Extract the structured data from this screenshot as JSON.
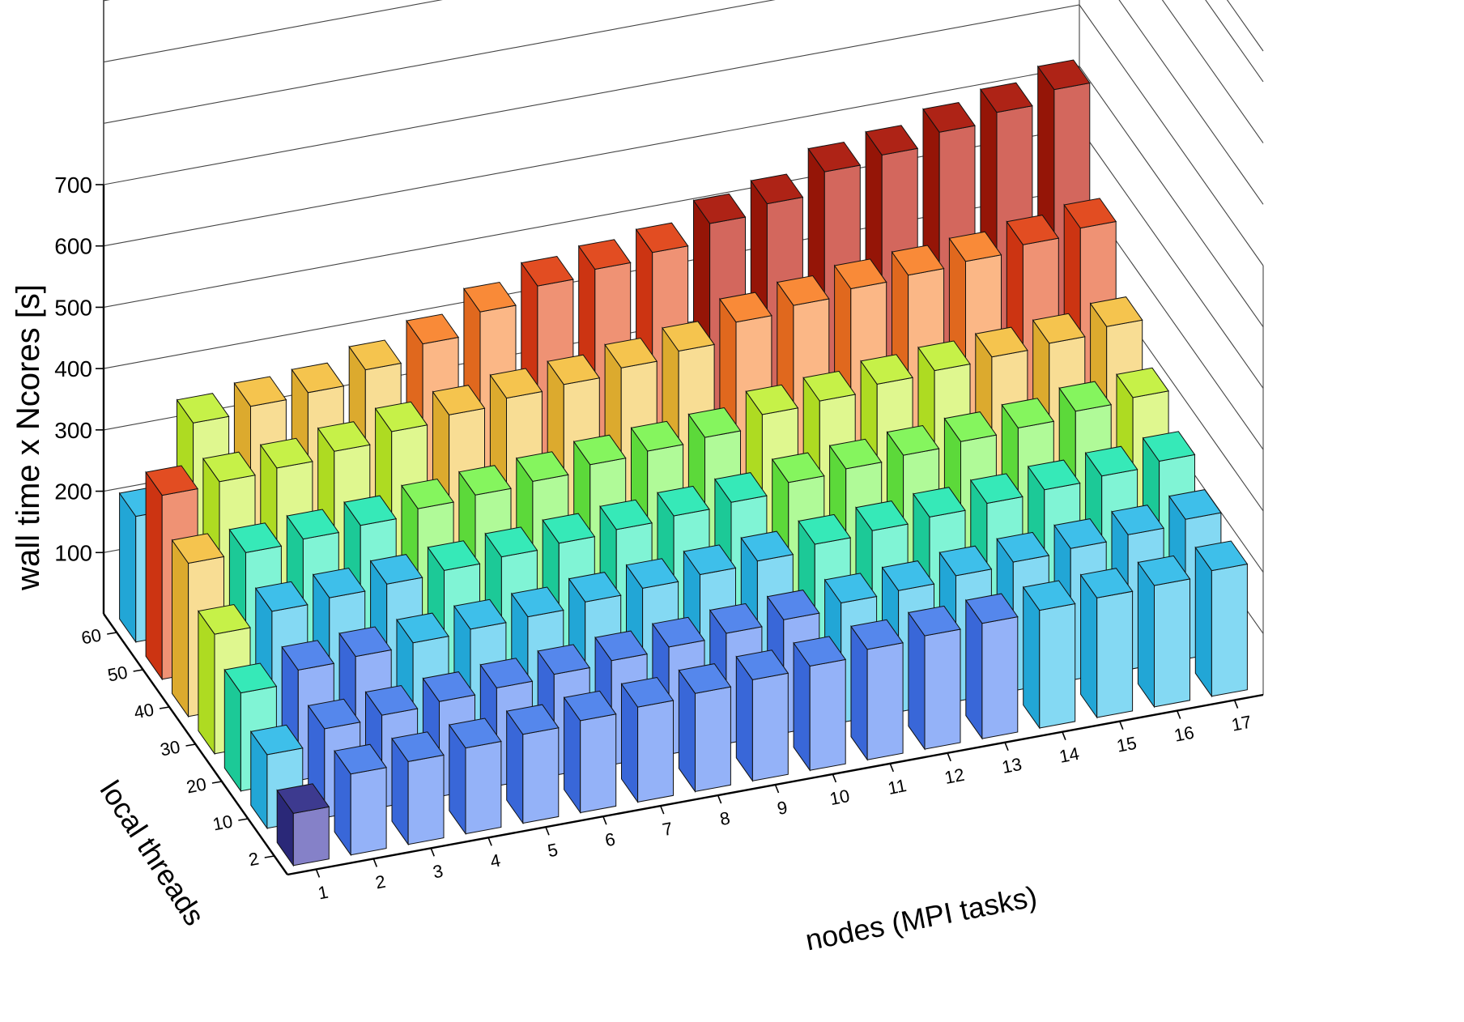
{
  "chart_data": {
    "type": "bar3d",
    "zlabel": "wall time x Ncores [s]",
    "xlabel": "nodes (MPI tasks)",
    "ylabel": "local threads",
    "x_categories": [
      "1",
      "2",
      "3",
      "4",
      "5",
      "6",
      "7",
      "8",
      "9",
      "10",
      "11",
      "12",
      "13",
      "14",
      "15",
      "16",
      "17"
    ],
    "y_categories": [
      "2",
      "10",
      "20",
      "30",
      "40",
      "50",
      "60"
    ],
    "z_ticks": [
      "100",
      "200",
      "300",
      "400",
      "500",
      "600",
      "700"
    ],
    "zlim": [
      0,
      700
    ],
    "grid": true,
    "values": [
      [
        85,
        132,
        135,
        140,
        145,
        150,
        155,
        160,
        165,
        170,
        180,
        185,
        188,
        192,
        195,
        198,
        205
      ],
      [
        120,
        145,
        150,
        155,
        160,
        165,
        170,
        175,
        180,
        185,
        195,
        198,
        205,
        210,
        215,
        220,
        228
      ],
      [
        160,
        180,
        185,
        190,
        195,
        198,
        205,
        210,
        215,
        220,
        230,
        235,
        240,
        245,
        250,
        255,
        262
      ],
      [
        195,
        215,
        220,
        225,
        230,
        235,
        240,
        245,
        250,
        255,
        270,
        275,
        280,
        285,
        290,
        300,
        305
      ],
      [
        250,
        250,
        255,
        260,
        270,
        275,
        280,
        290,
        295,
        300,
        320,
        325,
        335,
        340,
        345,
        350,
        360
      ],
      [
        300,
        305,
        310,
        320,
        335,
        345,
        355,
        360,
        370,
        380,
        410,
        420,
        430,
        435,
        440,
        450,
        460
      ],
      [
        205,
        340,
        350,
        355,
        375,
        400,
        435,
        460,
        470,
        480,
        510,
        525,
        560,
        570,
        590,
        605,
        625
      ]
    ],
    "colors": {
      "navy": {
        "top": "#3d3a8f",
        "front": "#8581c8",
        "side": "#2a2878"
      },
      "blue": {
        "top": "#5587ec",
        "front": "#94b2f8",
        "side": "#3967d8"
      },
      "cyan": {
        "top": "#3ebfea",
        "front": "#84d9f3",
        "side": "#22a6d6"
      },
      "teal": {
        "top": "#36e9b8",
        "front": "#80f4d5",
        "side": "#1cc997"
      },
      "green": {
        "top": "#85f55e",
        "front": "#b0fa98",
        "side": "#5cd93a"
      },
      "yellowgreen": {
        "top": "#c6f148",
        "front": "#dff78f",
        "side": "#aedb22"
      },
      "yellow": {
        "top": "#f5c44e",
        "front": "#f8dd94",
        "side": "#dcaa2e"
      },
      "orange": {
        "top": "#f98a38",
        "front": "#fbb786",
        "side": "#e0681e"
      },
      "redorange": {
        "top": "#e24d22",
        "front": "#ef9274",
        "side": "#cc3412"
      },
      "red": {
        "top": "#ae2316",
        "front": "#d3675d",
        "side": "#951507"
      }
    }
  }
}
